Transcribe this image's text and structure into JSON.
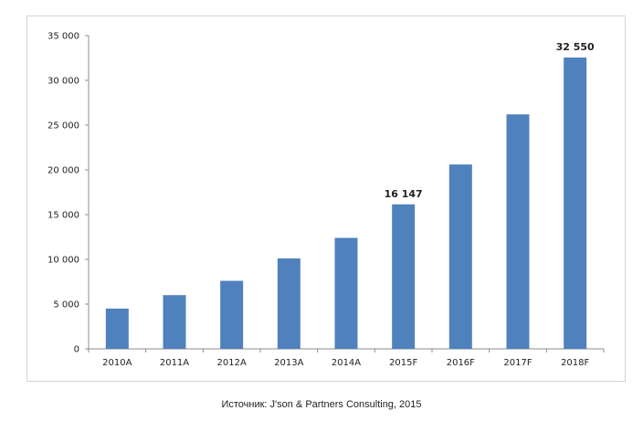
{
  "chart_data": {
    "type": "bar",
    "categories": [
      "2010A",
      "2011A",
      "2012A",
      "2013A",
      "2014A",
      "2015F",
      "2016F",
      "2017F",
      "2018F"
    ],
    "values": [
      4500,
      6000,
      7600,
      10100,
      12400,
      16147,
      20600,
      26200,
      32550
    ],
    "data_labels": [
      {
        "category": "2015F",
        "text": "16 147"
      },
      {
        "category": "2018F",
        "text": "32 550"
      }
    ],
    "ylim": [
      0,
      35000
    ],
    "yticks": [
      0,
      5000,
      10000,
      15000,
      20000,
      25000,
      30000,
      35000
    ],
    "ytick_labels": [
      "0",
      "5 000",
      "10 000",
      "15 000",
      "20 000",
      "25 000",
      "30 000",
      "35 000"
    ],
    "title": "",
    "xlabel": "",
    "ylabel": "",
    "grid": false,
    "bar_color": "#4f81bd"
  },
  "footer": {
    "source": "Источник: J'son & Partners Consulting, 2015"
  }
}
